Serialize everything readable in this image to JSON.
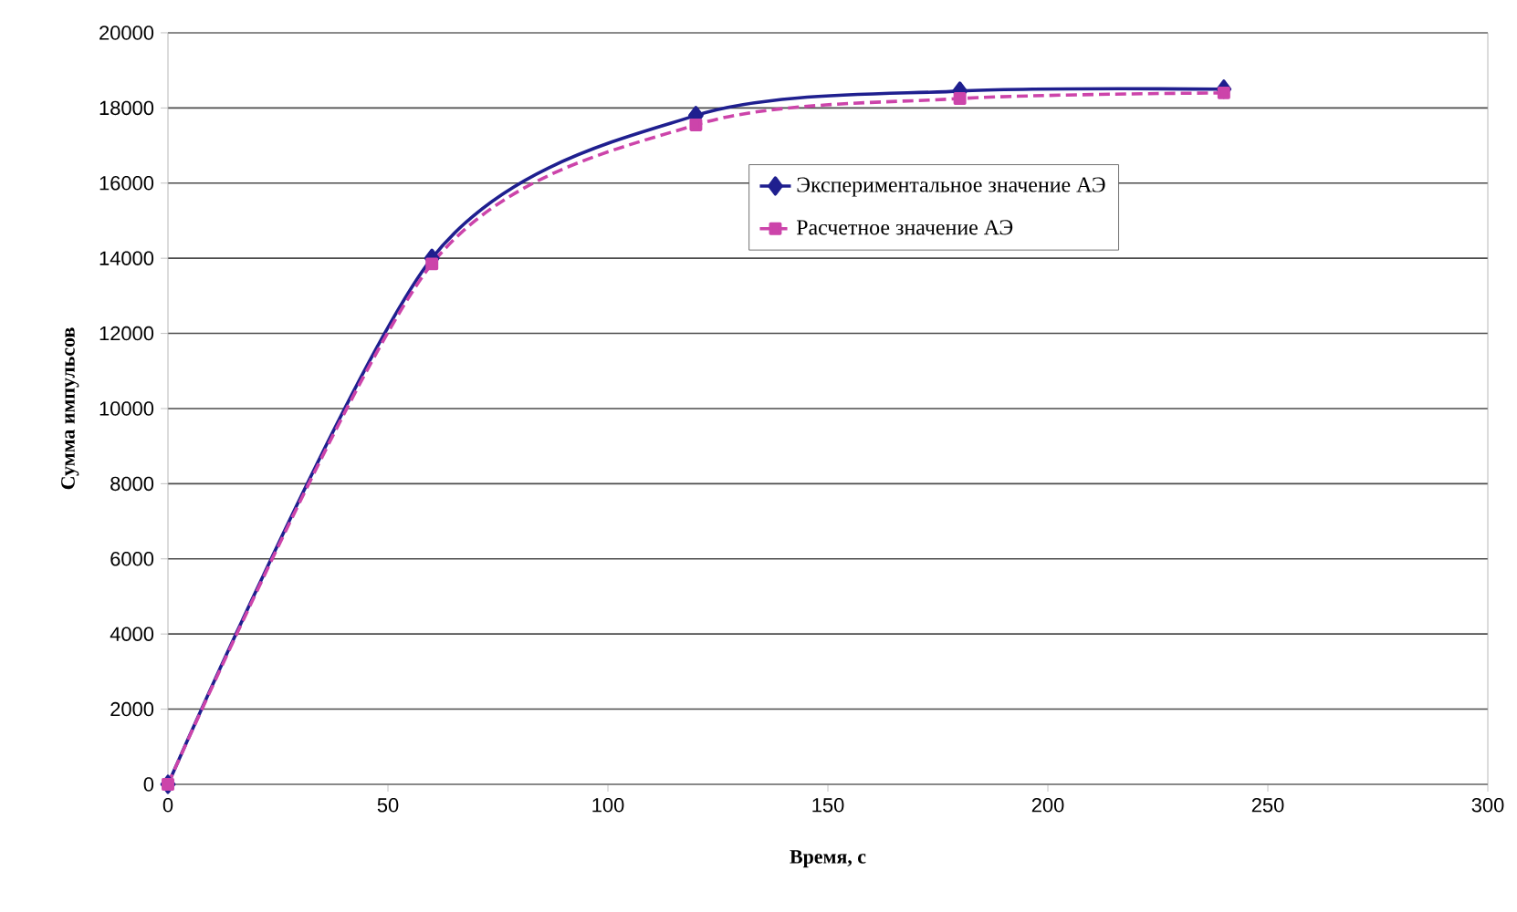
{
  "chart_data": {
    "type": "line",
    "xlabel": "Время, с",
    "ylabel": "Сумма импульсов",
    "xlim": [
      0,
      300
    ],
    "xticks": [
      0,
      50,
      100,
      150,
      200,
      250,
      300
    ],
    "ylim": [
      0,
      20000
    ],
    "yticks": [
      0,
      2000,
      4000,
      6000,
      8000,
      10000,
      12000,
      14000,
      16000,
      18000,
      20000
    ],
    "grid": "y",
    "legend": "top right",
    "series": [
      {
        "name": "Экспериментальное значение АЭ",
        "color": "#1f1f8f",
        "marker": "diamond",
        "line_style": "solid",
        "x": [
          0,
          60,
          120,
          180,
          240
        ],
        "values": [
          0,
          14000,
          17800,
          18450,
          18500
        ]
      },
      {
        "name": "Расчетное значение АЭ",
        "color": "#cc44aa",
        "marker": "square",
        "line_style": "dashed",
        "x": [
          0,
          60,
          120,
          180,
          240
        ],
        "values": [
          0,
          13850,
          17550,
          18250,
          18400
        ]
      }
    ]
  }
}
